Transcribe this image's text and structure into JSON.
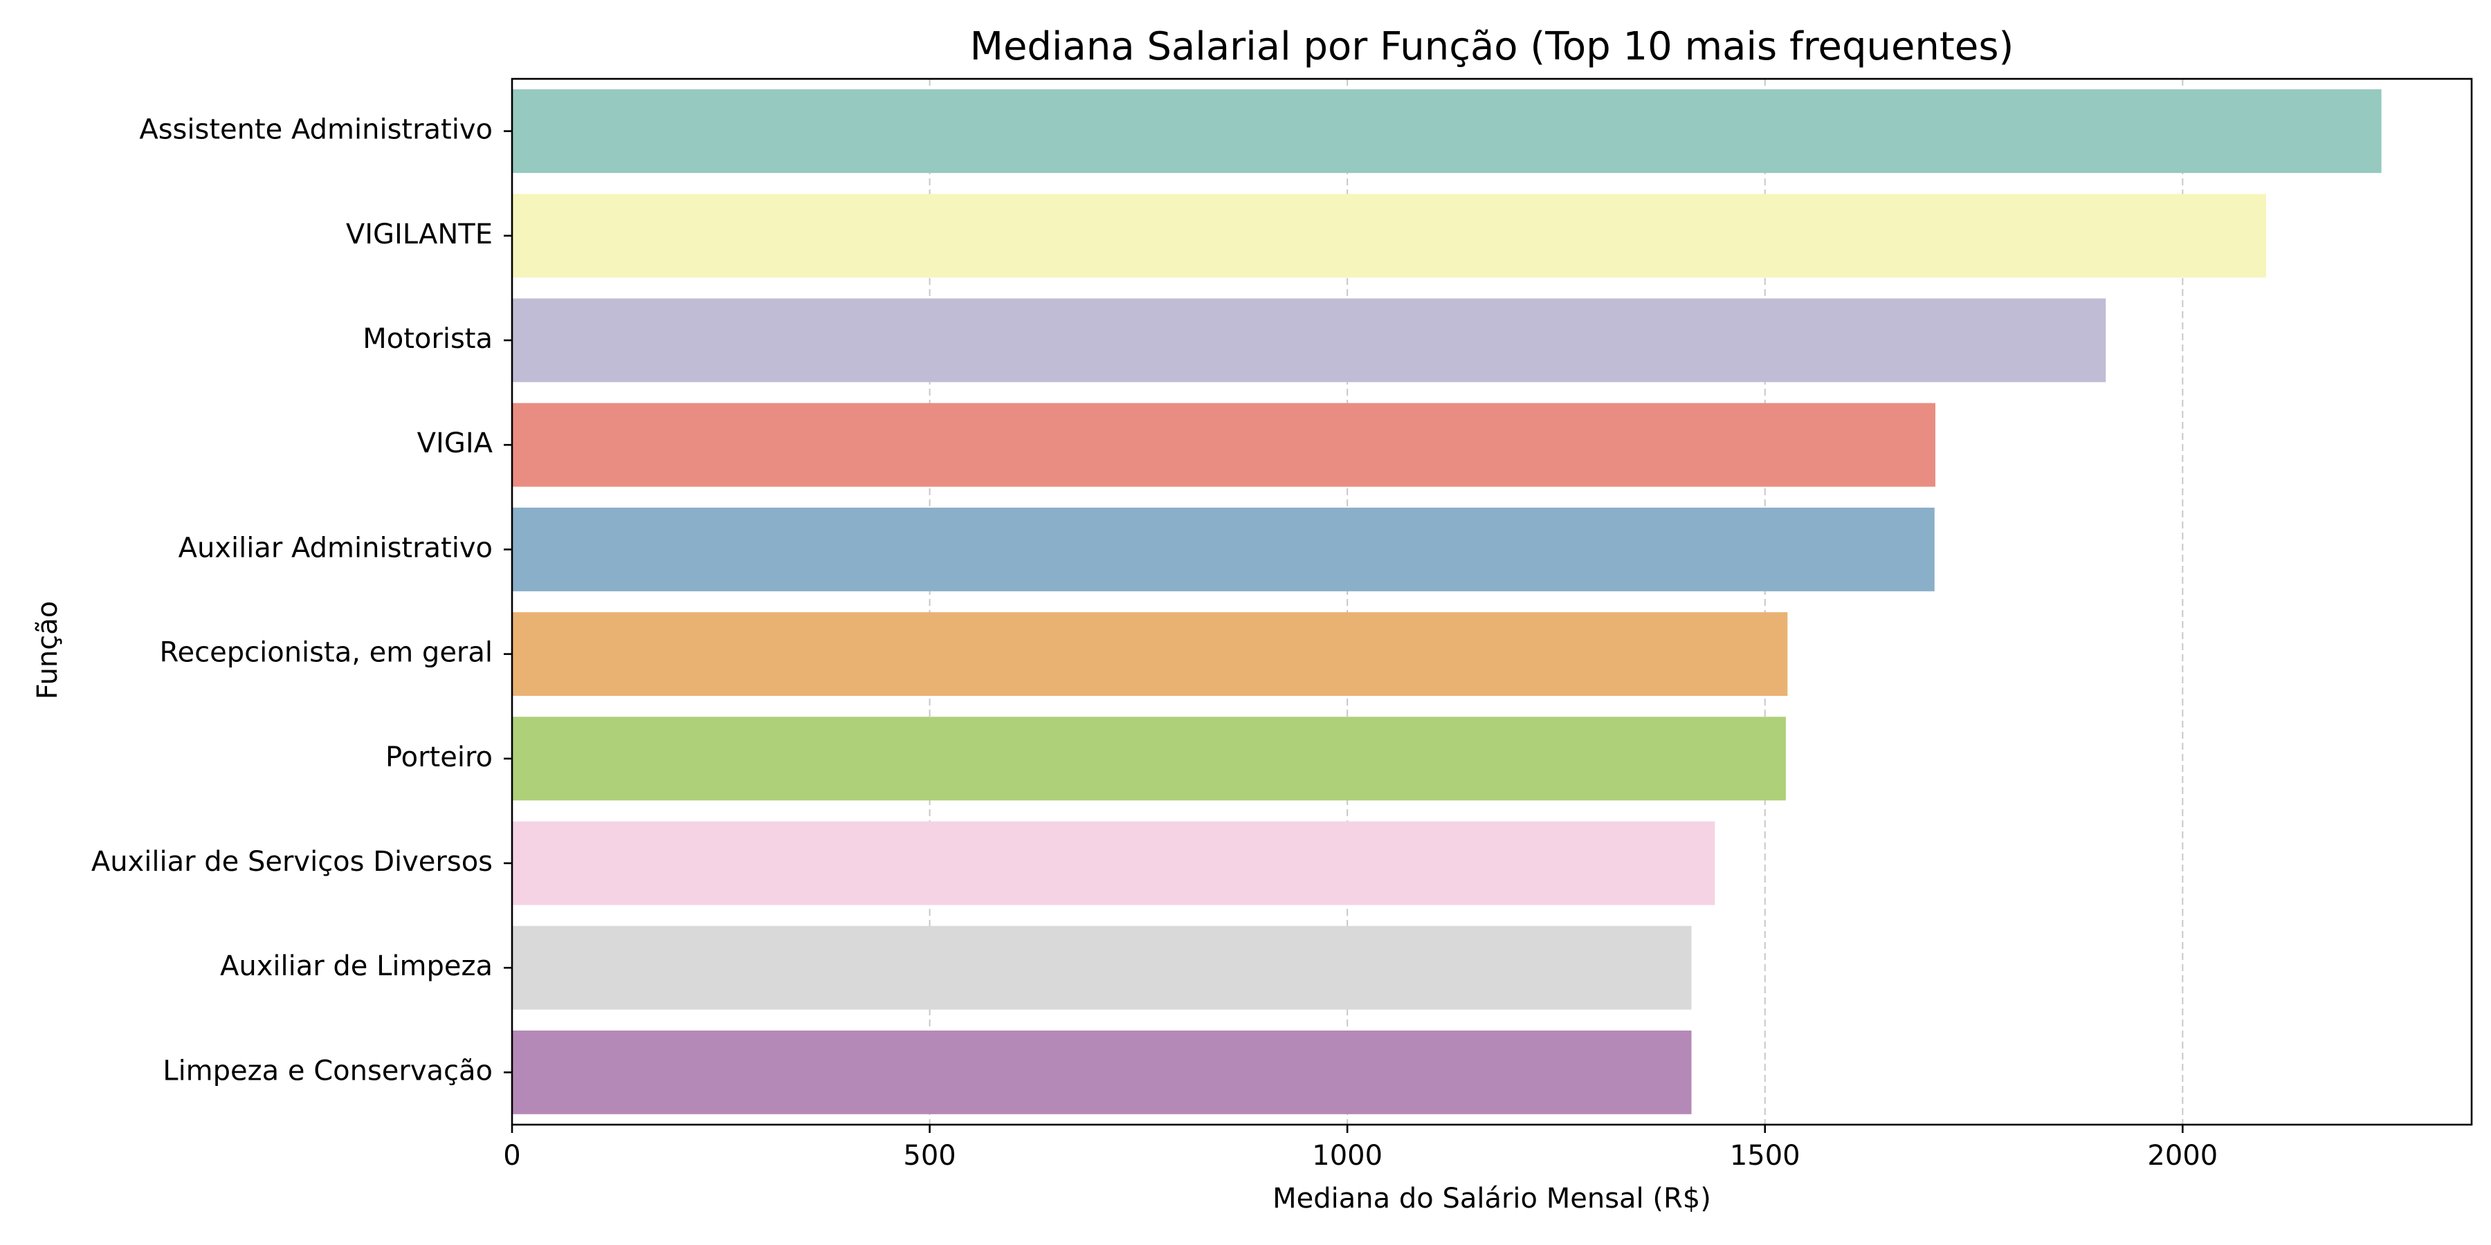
{
  "chart_data": {
    "type": "bar",
    "orientation": "horizontal",
    "title": "Mediana Salarial por Função (Top 10 mais frequentes)",
    "xlabel": "Mediana do Salário Mensal (R$)",
    "ylabel": "Função",
    "categories": [
      "Assistente Administrativo",
      "VIGILANTE",
      "Motorista",
      "VIGIA",
      "Auxiliar Administrativo",
      "Recepcionista, em geral",
      "Porteiro",
      "Auxiliar de Serviços Diversos",
      "Auxiliar de Limpeza",
      "Limpeza e Conservação"
    ],
    "values": [
      2238,
      2100,
      1908,
      1704,
      1703,
      1527,
      1525,
      1440,
      1412,
      1412
    ],
    "colors": [
      "#96c9c0",
      "#f6f5bc",
      "#c0bcd5",
      "#e98d82",
      "#8aafc9",
      "#e9b273",
      "#aed079",
      "#f5d3e4",
      "#d9d9d9",
      "#b589b7"
    ],
    "xlim": [
      0,
      2346
    ],
    "xticks": [
      0,
      500,
      1000,
      1500,
      2000
    ],
    "xtick_labels": [
      "0",
      "500",
      "1000",
      "1500",
      "2000"
    ],
    "grid": "x-dashed"
  }
}
